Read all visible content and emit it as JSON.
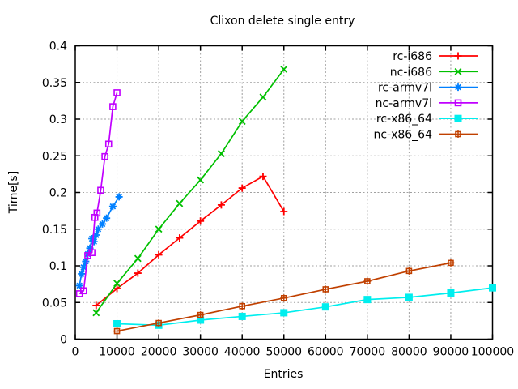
{
  "window": {
    "title": "Clixon delete single entry"
  },
  "chart_data": {
    "type": "line",
    "title": "Clixon delete single entry",
    "xlabel": "Entries",
    "ylabel": "Time[s]",
    "xlim": [
      0,
      100000
    ],
    "ylim": [
      0,
      0.4
    ],
    "x_ticks": [
      0,
      10000,
      20000,
      30000,
      40000,
      50000,
      60000,
      70000,
      80000,
      90000,
      100000
    ],
    "x_tick_labels": [
      "0",
      "10000",
      "20000",
      "30000",
      "40000",
      "50000",
      "60000",
      "70000",
      "80000",
      "90000",
      "100000"
    ],
    "y_ticks": [
      0,
      0.05,
      0.1,
      0.15,
      0.2,
      0.25,
      0.3,
      0.35,
      0.4
    ],
    "y_tick_labels": [
      "0",
      "0.05",
      "0.1",
      "0.15",
      "0.2",
      "0.25",
      "0.3",
      "0.35",
      "0.4"
    ],
    "grid": true,
    "grid_color": "#a0a0a0",
    "background": "#ffffff",
    "legend_position": "top-right-inside",
    "series": [
      {
        "name": "rc-i686",
        "color": "#ff0000",
        "marker": "plus",
        "points": [
          [
            5000,
            0.046
          ],
          [
            10000,
            0.069
          ],
          [
            15000,
            0.09
          ],
          [
            20000,
            0.115
          ],
          [
            25000,
            0.138
          ],
          [
            30000,
            0.161
          ],
          [
            35000,
            0.183
          ],
          [
            40000,
            0.206
          ],
          [
            45000,
            0.222
          ],
          [
            50000,
            0.174
          ]
        ]
      },
      {
        "name": "nc-i686",
        "color": "#00c000",
        "marker": "cross",
        "points": [
          [
            5000,
            0.036
          ],
          [
            10000,
            0.076
          ],
          [
            15000,
            0.11
          ],
          [
            20000,
            0.15
          ],
          [
            25000,
            0.185
          ],
          [
            30000,
            0.217
          ],
          [
            35000,
            0.253
          ],
          [
            40000,
            0.297
          ],
          [
            45000,
            0.33
          ],
          [
            50000,
            0.368
          ]
        ]
      },
      {
        "name": "rc-armv7l",
        "color": "#0080ff",
        "marker": "asterisk",
        "points": [
          [
            1000,
            0.073
          ],
          [
            1500,
            0.089
          ],
          [
            2000,
            0.098
          ],
          [
            2500,
            0.106
          ],
          [
            3000,
            0.116
          ],
          [
            3500,
            0.124
          ],
          [
            4000,
            0.137
          ],
          [
            4500,
            0.133
          ],
          [
            5000,
            0.142
          ],
          [
            5500,
            0.15
          ],
          [
            6500,
            0.157
          ],
          [
            7500,
            0.165
          ],
          [
            9000,
            0.181
          ],
          [
            10500,
            0.194
          ]
        ]
      },
      {
        "name": "nc-armv7l",
        "color": "#c000ff",
        "marker": "square-open",
        "points": [
          [
            1000,
            0.062
          ],
          [
            2000,
            0.066
          ],
          [
            3000,
            0.114
          ],
          [
            4000,
            0.118
          ],
          [
            4700,
            0.166
          ],
          [
            5200,
            0.172
          ],
          [
            6100,
            0.203
          ],
          [
            7100,
            0.249
          ],
          [
            8000,
            0.266
          ],
          [
            9000,
            0.317
          ],
          [
            10000,
            0.336
          ]
        ]
      },
      {
        "name": "rc-x86_64",
        "color": "#00eeee",
        "marker": "square-filled",
        "points": [
          [
            10000,
            0.021
          ],
          [
            20000,
            0.019
          ],
          [
            30000,
            0.026
          ],
          [
            40000,
            0.031
          ],
          [
            50000,
            0.036
          ],
          [
            60000,
            0.044
          ],
          [
            70000,
            0.054
          ],
          [
            80000,
            0.057
          ],
          [
            90000,
            0.063
          ],
          [
            100000,
            0.07
          ]
        ]
      },
      {
        "name": "nc-x86_64",
        "color": "#c04000",
        "marker": "square-plus",
        "points": [
          [
            10000,
            0.011
          ],
          [
            20000,
            0.022
          ],
          [
            30000,
            0.033
          ],
          [
            40000,
            0.045
          ],
          [
            50000,
            0.056
          ],
          [
            60000,
            0.068
          ],
          [
            70000,
            0.079
          ],
          [
            80000,
            0.093
          ],
          [
            90000,
            0.104
          ]
        ]
      }
    ]
  }
}
